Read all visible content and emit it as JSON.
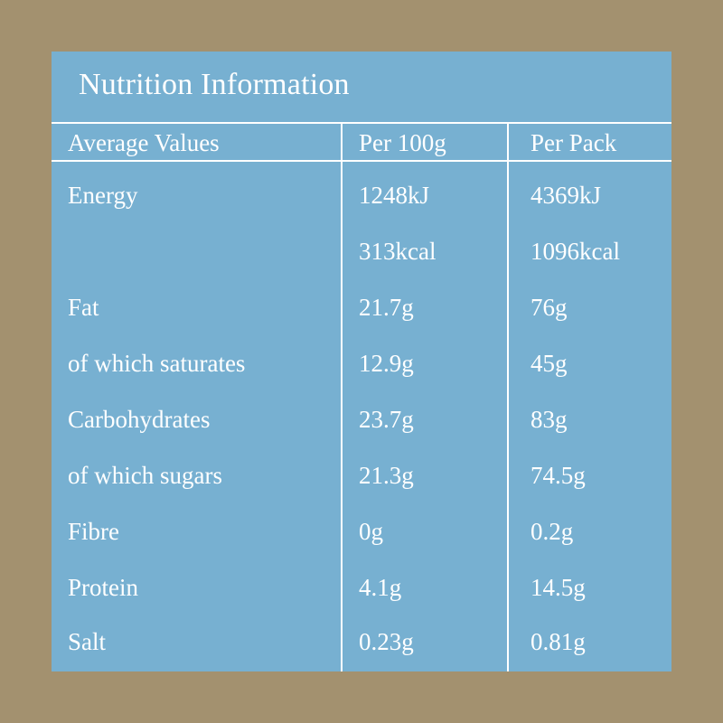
{
  "title": "Nutrition Information",
  "headers": {
    "col1": "Average Values",
    "col2": "Per 100g",
    "col3": "Per Pack"
  },
  "rows": [
    {
      "label": "Energy",
      "per100g": "1248kJ",
      "perPack": "4369kJ"
    },
    {
      "label": "",
      "per100g": "313kcal",
      "perPack": "1096kcal"
    },
    {
      "label": "Fat",
      "per100g": "21.7g",
      "perPack": "76g"
    },
    {
      "label": "of which saturates",
      "per100g": "12.9g",
      "perPack": "45g"
    },
    {
      "label": "Carbohydrates",
      "per100g": "23.7g",
      "perPack": "83g"
    },
    {
      "label": "of which sugars",
      "per100g": "21.3g",
      "perPack": "74.5g"
    },
    {
      "label": "Fibre",
      "per100g": "0g",
      "perPack": "0.2g"
    },
    {
      "label": "Protein",
      "per100g": "4.1g",
      "perPack": "14.5g"
    },
    {
      "label": "Salt",
      "per100g": "0.23g",
      "perPack": "0.81g"
    }
  ]
}
